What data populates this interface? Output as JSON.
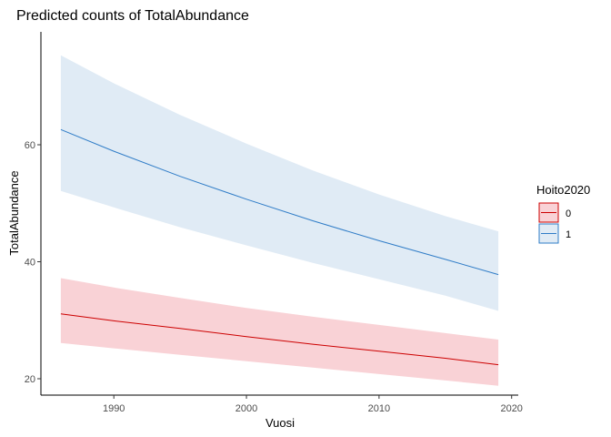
{
  "chart_data": {
    "type": "line",
    "title": "Predicted counts of TotalAbundance",
    "xlabel": "Vuosi",
    "ylabel": "TotalAbundance",
    "xlim": [
      1984.5,
      2020.5
    ],
    "ylim": [
      17.2,
      79.3
    ],
    "xticks": [
      1990,
      2000,
      2010,
      2020
    ],
    "yticks": [
      20,
      40,
      60
    ],
    "grid": false,
    "legend": {
      "title": "Hoito2020",
      "placement": "right"
    },
    "series": [
      {
        "name": "0",
        "color": "#CC0000",
        "fill": "#F9D2D6",
        "x": [
          1986,
          1990,
          1995,
          2000,
          2005,
          2010,
          2015,
          2019
        ],
        "y": [
          31.1,
          29.9,
          28.6,
          27.2,
          25.9,
          24.7,
          23.5,
          22.4
        ],
        "lower": [
          26.1,
          25.2,
          24.1,
          23.0,
          21.9,
          20.8,
          19.7,
          18.8
        ],
        "upper": [
          37.2,
          35.6,
          33.8,
          32.1,
          30.6,
          29.2,
          27.8,
          26.7
        ]
      },
      {
        "name": "1",
        "color": "#2F7CC7",
        "fill": "#E0EBF5",
        "x": [
          1986,
          1990,
          1995,
          2000,
          2005,
          2010,
          2015,
          2019
        ],
        "y": [
          62.6,
          58.9,
          54.6,
          50.7,
          47.0,
          43.6,
          40.4,
          37.8
        ],
        "lower": [
          52.1,
          49.3,
          45.9,
          42.8,
          39.8,
          37.0,
          34.2,
          31.6
        ],
        "upper": [
          75.3,
          70.5,
          65.1,
          60.2,
          55.6,
          51.5,
          47.8,
          45.2
        ]
      }
    ]
  }
}
